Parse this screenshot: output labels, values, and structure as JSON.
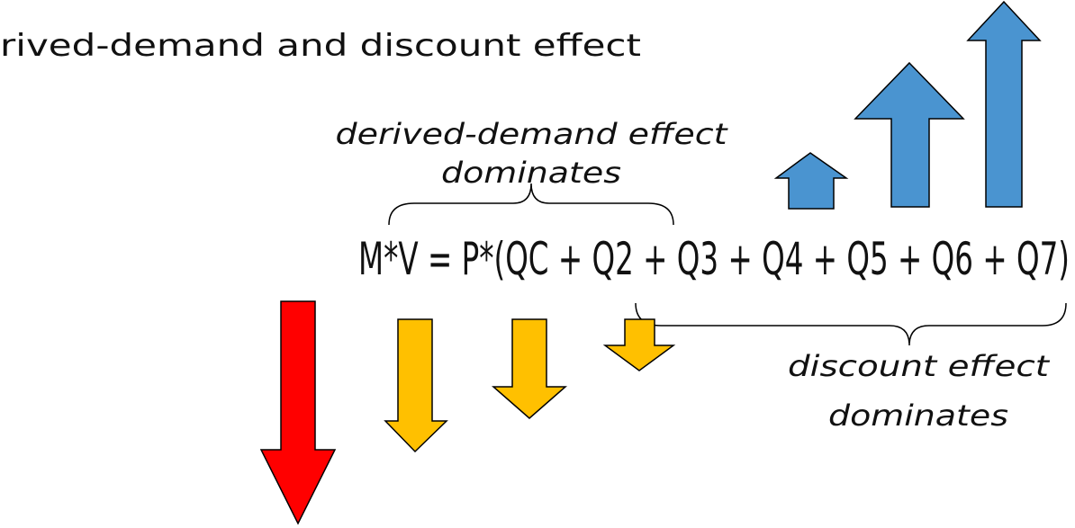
{
  "heading": "rived-demand and discount effect",
  "equation": "M*V = P*(QC + Q2 + Q3 + Q4 + Q5 + Q6 + Q7)",
  "annotations": [
    {
      "lines": [
        "derived-demand effect",
        "dominates"
      ]
    },
    {
      "lines": [
        "discount effect",
        "dominates"
      ]
    }
  ]
}
